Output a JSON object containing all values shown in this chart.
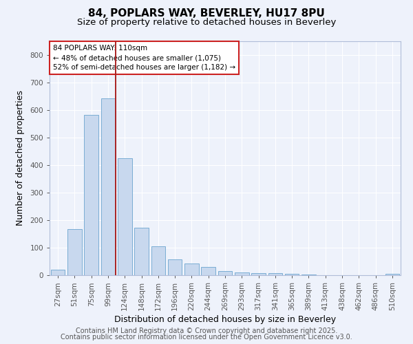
{
  "title_line1": "84, POPLARS WAY, BEVERLEY, HU17 8PU",
  "title_line2": "Size of property relative to detached houses in Beverley",
  "xlabel": "Distribution of detached houses by size in Beverley",
  "ylabel": "Number of detached properties",
  "categories": [
    "27sqm",
    "51sqm",
    "75sqm",
    "99sqm",
    "124sqm",
    "148sqm",
    "172sqm",
    "196sqm",
    "220sqm",
    "244sqm",
    "269sqm",
    "293sqm",
    "317sqm",
    "341sqm",
    "365sqm",
    "389sqm",
    "413sqm",
    "438sqm",
    "462sqm",
    "486sqm",
    "510sqm"
  ],
  "values": [
    19,
    168,
    583,
    643,
    425,
    173,
    105,
    57,
    42,
    31,
    15,
    10,
    8,
    7,
    4,
    3,
    0,
    0,
    0,
    0,
    6
  ],
  "bar_color": "#c8d8ee",
  "bar_edge_color": "#7aadd4",
  "vline_x": 3.46,
  "vline_color": "#aa2222",
  "annotation_text": "84 POPLARS WAY: 110sqm\n← 48% of detached houses are smaller (1,075)\n52% of semi-detached houses are larger (1,182) →",
  "annotation_box_color": "white",
  "annotation_box_edge_color": "#cc2222",
  "ylim": [
    0,
    850
  ],
  "yticks": [
    0,
    100,
    200,
    300,
    400,
    500,
    600,
    700,
    800
  ],
  "background_color": "#eef2fb",
  "grid_color": "white",
  "footer_line1": "Contains HM Land Registry data © Crown copyright and database right 2025.",
  "footer_line2": "Contains public sector information licensed under the Open Government Licence v3.0.",
  "title_fontsize": 11,
  "subtitle_fontsize": 9.5,
  "tick_fontsize": 7.5,
  "axis_label_fontsize": 9,
  "footer_fontsize": 7,
  "annot_fontsize": 7.5
}
